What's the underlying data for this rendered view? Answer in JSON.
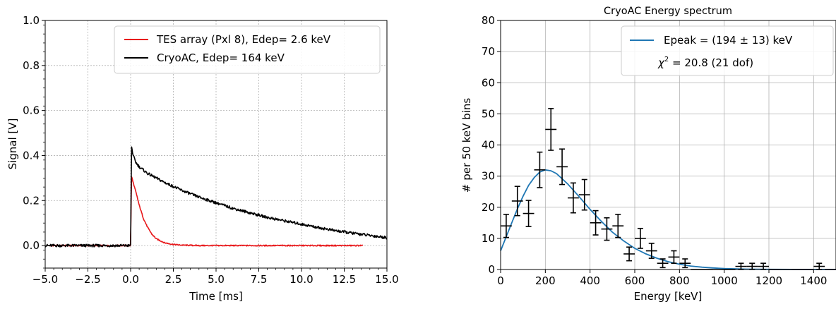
{
  "chart_data": [
    {
      "type": "line",
      "title": "",
      "xlabel": "Time [ms]",
      "ylabel": "Signal [V]",
      "xlim": [
        -5.0,
        15.0
      ],
      "ylim": [
        -0.1,
        1.0
      ],
      "xticks": [
        "−5.0",
        "−2.5",
        "0.0",
        "2.5",
        "5.0",
        "7.5",
        "10.0",
        "12.5",
        "15.0"
      ],
      "xtick_values": [
        -5.0,
        -2.5,
        0.0,
        2.5,
        5.0,
        7.5,
        10.0,
        12.5,
        15.0
      ],
      "yticks": [
        "0.0",
        "0.2",
        "0.4",
        "0.6",
        "0.8",
        "1.0"
      ],
      "ytick_values": [
        0.0,
        0.2,
        0.4,
        0.6,
        0.8,
        1.0
      ],
      "grid": true,
      "legend_position": "top-right",
      "series": [
        {
          "name": "TES array (Pxl 8), Edep= 2.6 keV",
          "color": "#e8191c",
          "x": [
            -4.8,
            -3.0,
            -1.0,
            0.0,
            0.05,
            0.15,
            0.3,
            0.5,
            0.75,
            1.0,
            1.25,
            1.5,
            2.0,
            2.5,
            3.0,
            4.0,
            6.0,
            10.0,
            13.6
          ],
          "y": [
            0.0,
            0.0,
            0.0,
            0.0,
            0.31,
            0.28,
            0.24,
            0.18,
            0.12,
            0.08,
            0.05,
            0.03,
            0.012,
            0.005,
            0.002,
            0.0,
            0.0,
            0.0,
            0.0
          ]
        },
        {
          "name": "CryoAC, Edep= 164 keV",
          "color": "#000000",
          "x": [
            -5.0,
            -3.0,
            -1.0,
            0.0,
            0.05,
            0.15,
            0.3,
            0.5,
            1.0,
            1.5,
            2.0,
            3.0,
            4.0,
            5.0,
            6.0,
            7.0,
            8.0,
            9.0,
            10.0,
            11.0,
            12.0,
            13.0,
            14.0,
            15.0
          ],
          "y": [
            0.0,
            0.0,
            0.0,
            0.0,
            0.44,
            0.4,
            0.37,
            0.35,
            0.32,
            0.3,
            0.28,
            0.245,
            0.215,
            0.19,
            0.165,
            0.145,
            0.125,
            0.11,
            0.095,
            0.08,
            0.066,
            0.055,
            0.045,
            0.035
          ]
        }
      ]
    },
    {
      "type": "scatter",
      "title": "CryoAC Energy spectrum",
      "xlabel": "Energy [keV]",
      "ylabel": "# per 50 keV bins",
      "xlim": [
        0,
        1500
      ],
      "ylim": [
        0,
        80
      ],
      "xticks": [
        "0",
        "200",
        "400",
        "600",
        "800",
        "1000",
        "1200",
        "1400"
      ],
      "xtick_values": [
        0,
        200,
        400,
        600,
        800,
        1000,
        1200,
        1400
      ],
      "yticks": [
        "0",
        "10",
        "20",
        "30",
        "40",
        "50",
        "60",
        "70",
        "80"
      ],
      "ytick_values": [
        0,
        10,
        20,
        30,
        40,
        50,
        60,
        70,
        80
      ],
      "grid": true,
      "legend_position": "top-right",
      "fit": {
        "name": "Epeak = (194 ± 13) keV",
        "name_parts": [
          "Epeak = (194 ± 13) keV"
        ],
        "chi2_label_prefix": "χ",
        "chi2_label_sup": "2",
        "chi2_label_suffix": " = 20.8 (21 dof)",
        "color": "#1f77b4",
        "x": [
          0,
          25,
          50,
          75,
          100,
          125,
          150,
          175,
          200,
          225,
          250,
          300,
          350,
          400,
          450,
          500,
          550,
          600,
          650,
          700,
          750,
          800,
          850,
          900,
          950,
          1000,
          1100,
          1200,
          1300,
          1400,
          1500
        ],
        "y": [
          6,
          10.5,
          15,
          19.5,
          23.5,
          27,
          29.5,
          31.3,
          32,
          31.7,
          30.8,
          27.5,
          23.5,
          19.3,
          15.5,
          12,
          9.2,
          6.8,
          5.0,
          3.6,
          2.5,
          1.7,
          1.1,
          0.75,
          0.5,
          0.3,
          0.12,
          0.05,
          0.02,
          0.01,
          0.0
        ]
      },
      "points": {
        "x": [
          25,
          75,
          125,
          175,
          225,
          275,
          325,
          375,
          425,
          475,
          525,
          575,
          625,
          675,
          725,
          775,
          825,
          875,
          925,
          975,
          1025,
          1075,
          1125,
          1175,
          1225,
          1275,
          1325,
          1375,
          1425,
          1475
        ],
        "y": [
          14,
          22,
          18,
          32,
          45,
          33,
          23,
          24,
          15,
          13,
          14,
          5,
          10,
          6,
          2,
          4,
          2,
          0,
          0,
          0,
          0,
          1,
          1,
          1,
          0,
          0,
          0,
          0,
          1,
          0
        ],
        "yerr": [
          3.7,
          4.7,
          4.2,
          5.7,
          6.7,
          5.7,
          4.8,
          4.9,
          3.9,
          3.6,
          3.7,
          2.2,
          3.2,
          2.4,
          1.4,
          2.0,
          1.4,
          0,
          0,
          0,
          0,
          1.0,
          1.0,
          1.0,
          0,
          0,
          0,
          0,
          1.0,
          0
        ],
        "xerr": 25,
        "color": "#000000"
      }
    }
  ]
}
